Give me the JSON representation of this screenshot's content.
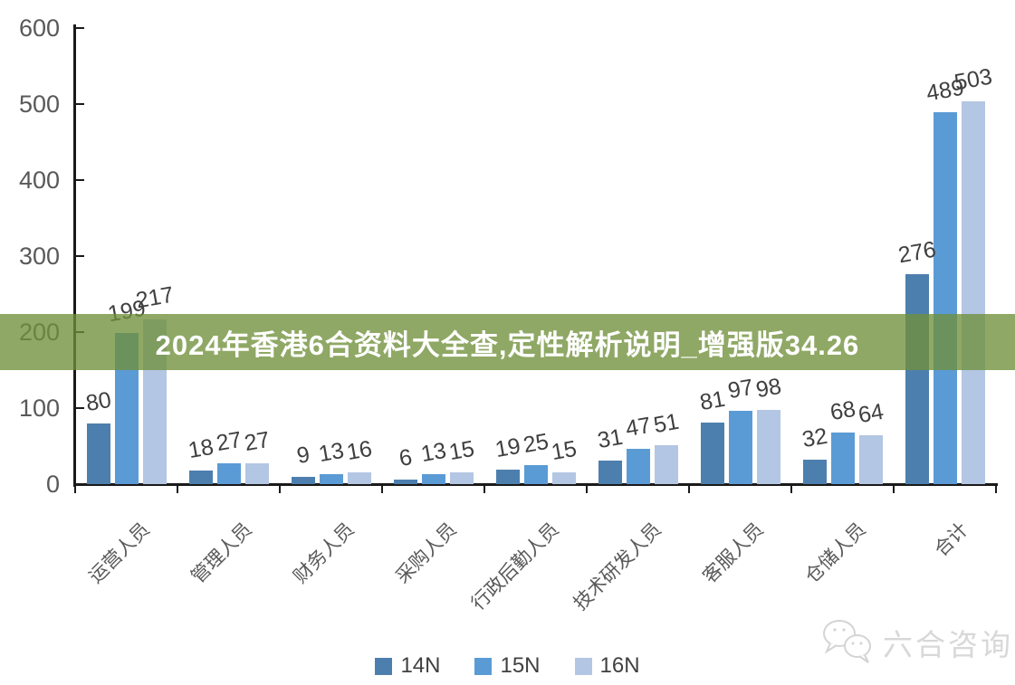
{
  "banner": {
    "text": "2024年香港6合资料大全查,定性解析说明_增强版34.26",
    "bg_color": "#70903A",
    "bg_alpha": 0.78,
    "text_color": "#ffffff"
  },
  "watermark": {
    "text": "六合咨询",
    "icon": "wechat-icon",
    "color": "#d8d8d8"
  },
  "chart_data": {
    "type": "bar",
    "title": "",
    "categories": [
      "运营人员",
      "管理人员",
      "财务人员",
      "采购人员",
      "行政后勤人员",
      "技术研发人员",
      "客服人员",
      "仓储人员",
      "合计"
    ],
    "series": [
      {
        "name": "14N",
        "color": "#4D7FAE",
        "values": [
          80,
          18,
          9,
          6,
          19,
          31,
          81,
          32,
          276
        ]
      },
      {
        "name": "15N",
        "color": "#5B9BD5",
        "values": [
          199,
          27,
          13,
          13,
          25,
          47,
          97,
          68,
          489
        ]
      },
      {
        "name": "16N",
        "color": "#B3C6E3",
        "values": [
          217,
          27,
          16,
          15,
          15,
          51,
          98,
          64,
          503
        ]
      }
    ],
    "xlabel": "",
    "ylabel": "",
    "ylim": [
      0,
      600
    ],
    "yticks": [
      0,
      100,
      200,
      300,
      400,
      500,
      600
    ],
    "grid": false,
    "legend_position": "bottom",
    "data_labels": true,
    "axis_color": "#1a1a1a",
    "tick_label_color": "#595959",
    "data_label_color": "#3f3f3f"
  }
}
